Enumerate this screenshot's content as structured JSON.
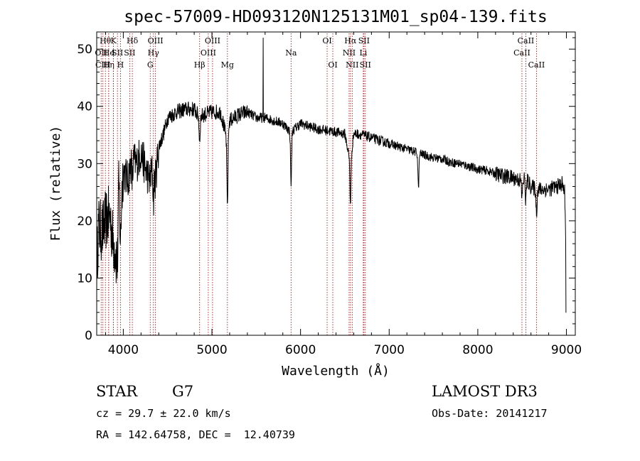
{
  "chart_data": {
    "type": "line",
    "title": "spec-57009-HD093120N125131M01_sp04-139.fits",
    "xlabel": "Wavelength (Å)",
    "ylabel": "Flux (relative)",
    "xlim": [
      3700,
      9100
    ],
    "ylim": [
      0,
      53
    ],
    "xticks": [
      4000,
      5000,
      6000,
      7000,
      8000,
      9000
    ],
    "yticks": [
      0,
      10,
      20,
      30,
      40,
      50
    ],
    "spectrum_anchors": {
      "x": [
        3700,
        3720,
        3760,
        3800,
        3850,
        3880,
        3920,
        3950,
        3970,
        4000,
        4050,
        4100,
        4150,
        4200,
        4250,
        4300,
        4340,
        4360,
        4400,
        4450,
        4500,
        4600,
        4700,
        4800,
        4860,
        4900,
        5000,
        5100,
        5170,
        5200,
        5300,
        5400,
        5500,
        5600,
        5700,
        5800,
        5890,
        6000,
        6100,
        6200,
        6300,
        6400,
        6500,
        6563,
        6600,
        6700,
        6800,
        6900,
        7000,
        7100,
        7200,
        7300,
        7400,
        7500,
        7600,
        7700,
        7800,
        7900,
        8000,
        8100,
        8200,
        8300,
        8400,
        8500,
        8540,
        8600,
        8662,
        8700,
        8800,
        8900,
        8950,
        8980,
        9000
      ],
      "y": [
        12,
        19,
        18,
        20,
        21,
        17,
        14,
        26,
        22,
        29,
        27,
        31,
        30,
        32,
        29,
        27,
        30,
        27,
        33,
        35,
        38,
        39,
        39.5,
        39.5,
        38,
        38.5,
        39,
        39,
        34,
        37.5,
        38.5,
        39,
        38,
        38,
        37.5,
        37,
        35.5,
        37,
        36.5,
        36,
        35.8,
        35.5,
        35.2,
        30,
        35.3,
        35,
        34.5,
        34,
        33.5,
        33,
        32.5,
        32,
        31.5,
        31,
        30.8,
        30.2,
        30,
        29.5,
        29,
        28.8,
        28.2,
        27.8,
        27.5,
        27,
        27.5,
        26,
        25.5,
        25.5,
        25.5,
        26,
        26.5,
        25,
        12
      ]
    },
    "absorption_features": [
      {
        "x": 3934,
        "depth": 7
      },
      {
        "x": 3968,
        "depth": 6
      },
      {
        "x": 4102,
        "depth": 4
      },
      {
        "x": 4340,
        "depth": 6
      },
      {
        "x": 4861,
        "depth": 4
      },
      {
        "x": 5175,
        "depth": 12
      },
      {
        "x": 5893,
        "depth": 9
      },
      {
        "x": 6563,
        "depth": 7
      },
      {
        "x": 7330,
        "depth": 6
      },
      {
        "x": 8498,
        "depth": 3
      },
      {
        "x": 8542,
        "depth": 4
      },
      {
        "x": 8662,
        "depth": 4
      }
    ],
    "spikes": [
      {
        "x": 5577,
        "y": 52
      }
    ],
    "lines": [
      {
        "x": 3750,
        "row": 1,
        "label": "OII"
      },
      {
        "x": 3770,
        "row": 2,
        "label": "CIII"
      },
      {
        "x": 3798,
        "row": 0,
        "label": "Hθ"
      },
      {
        "x": 3835,
        "row": 1,
        "label": "He"
      },
      {
        "x": 3835,
        "row": 2,
        "label": "Hη"
      },
      {
        "x": 3889,
        "row": 0,
        "label": "K"
      },
      {
        "x": 3889,
        "row": 1,
        "label": "I"
      },
      {
        "x": 3934,
        "row": 1,
        "label": "SII"
      },
      {
        "x": 3968,
        "row": 2,
        "label": "H"
      },
      {
        "x": 4102,
        "row": 0,
        "label": "Hδ"
      },
      {
        "x": 4072,
        "row": 1,
        "label": "SII"
      },
      {
        "x": 4304,
        "row": 2,
        "label": "G"
      },
      {
        "x": 4340,
        "row": 1,
        "label": "Hγ"
      },
      {
        "x": 4363,
        "row": 0,
        "label": "OIII"
      },
      {
        "x": 4861,
        "row": 2,
        "label": "Hβ"
      },
      {
        "x": 4959,
        "row": 1,
        "label": "OIII"
      },
      {
        "x": 5007,
        "row": 0,
        "label": "OIII"
      },
      {
        "x": 5175,
        "row": 2,
        "label": "Mg"
      },
      {
        "x": 5893,
        "row": 1,
        "label": "Na"
      },
      {
        "x": 6300,
        "row": 0,
        "label": "OI"
      },
      {
        "x": 6364,
        "row": 2,
        "label": "OI"
      },
      {
        "x": 6548,
        "row": 1,
        "label": "NII"
      },
      {
        "x": 6563,
        "row": 0,
        "label": "Hα"
      },
      {
        "x": 6583,
        "row": 2,
        "label": "NII"
      },
      {
        "x": 6708,
        "row": 1,
        "label": "Li"
      },
      {
        "x": 6716,
        "row": 0,
        "label": "SII"
      },
      {
        "x": 6731,
        "row": 2,
        "label": "SII"
      },
      {
        "x": 8498,
        "row": 1,
        "label": "CaII"
      },
      {
        "x": 8542,
        "row": 0,
        "label": "CaII"
      },
      {
        "x": 8662,
        "row": 2,
        "label": "CaII"
      }
    ]
  },
  "info": {
    "object_class": "STAR",
    "subclass": "G7",
    "cz": "cz = 29.7 ± 22.0 km/s",
    "coords": "RA = 142.64758, DEC =  12.40739",
    "survey": "LAMOST DR3",
    "obs_date": "Obs-Date: 20141217"
  }
}
